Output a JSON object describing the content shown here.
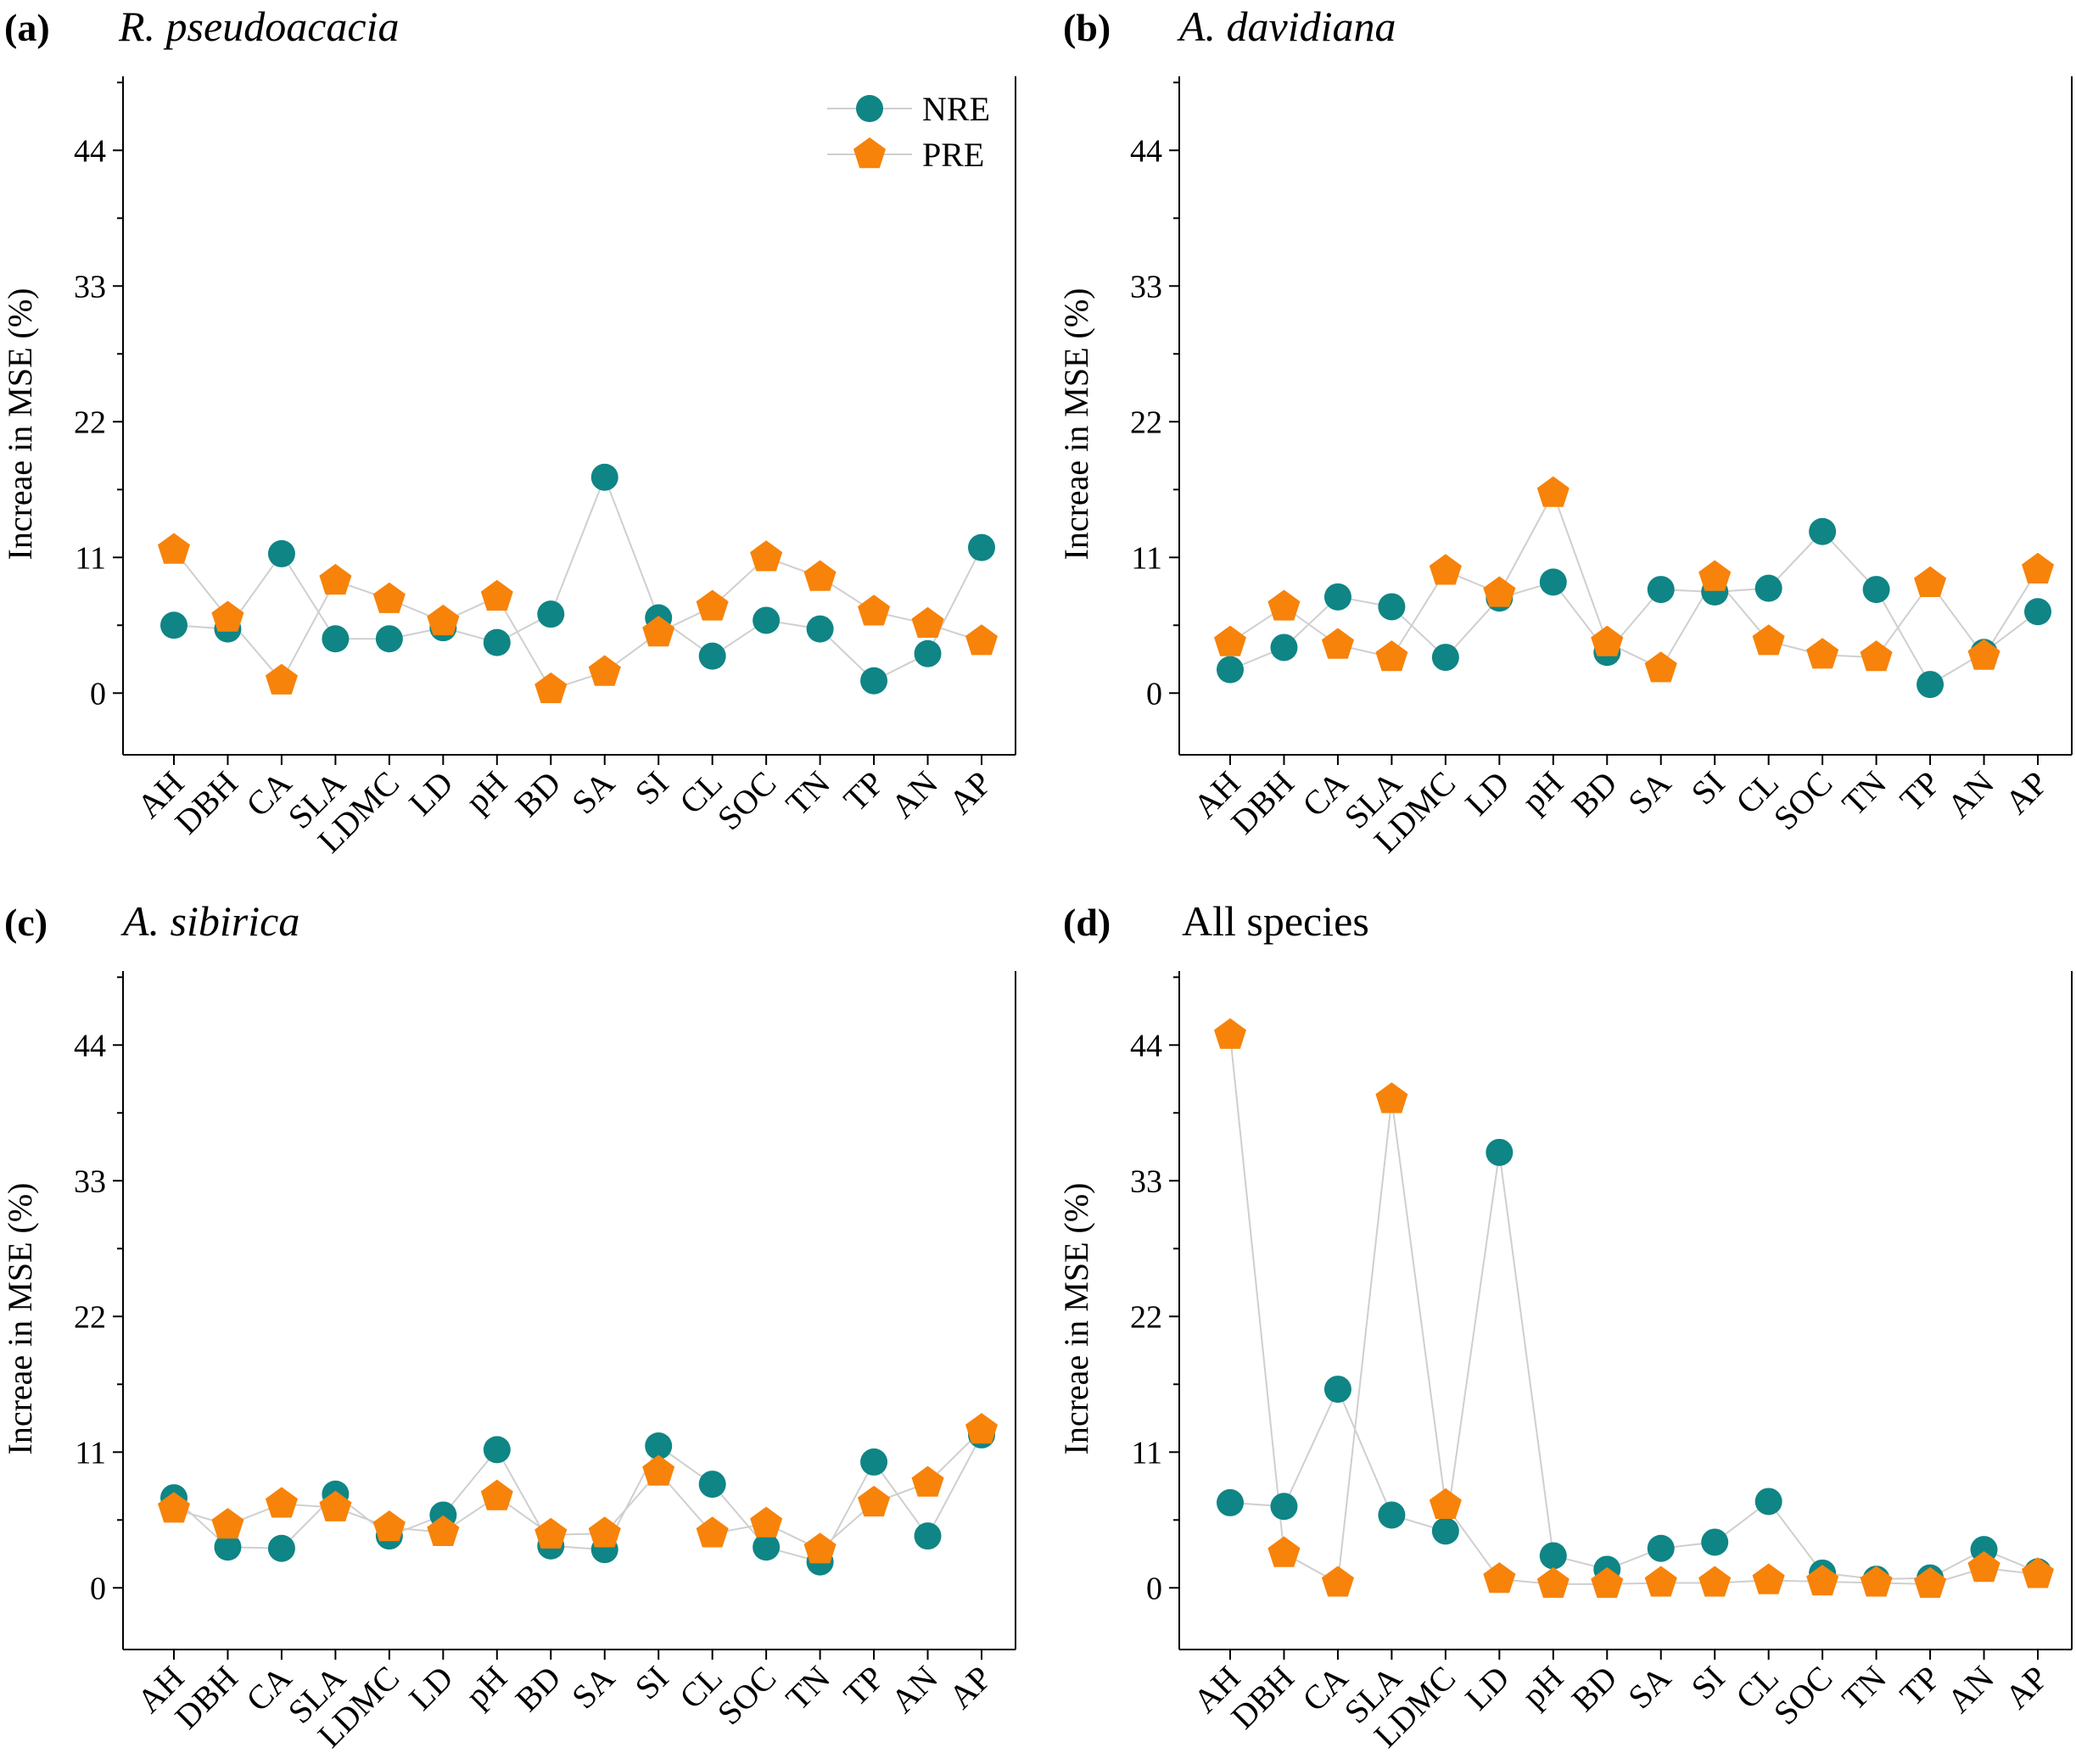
{
  "legend": {
    "nre_label": "NRE",
    "pre_label": "PRE"
  },
  "colors": {
    "nre": "#0F8585",
    "pre": "#F7830A",
    "connector": "#CFCFCF",
    "axis": "#000000"
  },
  "chart_data": [
    {
      "type": "scatter",
      "panel": "(a)",
      "title": "R. pseudoacacia",
      "title_italic": true,
      "ylabel": "Increae in MSE (%)",
      "ylim": [
        -5,
        50
      ],
      "yticks": [
        0,
        11,
        22,
        33,
        44
      ],
      "categories": [
        "AH",
        "DBH",
        "CA",
        "SLA",
        "LDMC",
        "LD",
        "pH",
        "BD",
        "SA",
        "SI",
        "CL",
        "SOC",
        "TN",
        "TP",
        "AN",
        "AP"
      ],
      "series": [
        {
          "name": "NRE",
          "values": [
            5.5,
            5.2,
            11.3,
            4.4,
            4.4,
            5.3,
            4.1,
            6.4,
            17.5,
            6.1,
            3.0,
            5.9,
            5.2,
            1.0,
            3.2,
            11.8
          ]
        },
        {
          "name": "PRE",
          "values": [
            11.6,
            6.1,
            1.0,
            9.1,
            7.6,
            5.8,
            7.8,
            0.3,
            1.7,
            4.9,
            7.0,
            11.0,
            9.4,
            6.6,
            5.6,
            4.2
          ]
        }
      ]
    },
    {
      "type": "scatter",
      "panel": "(b)",
      "title": "A. davidiana",
      "title_italic": true,
      "ylabel": "Increae in MSE (%)",
      "ylim": [
        -5,
        50
      ],
      "yticks": [
        0,
        11,
        22,
        33,
        44
      ],
      "categories": [
        "AH",
        "DBH",
        "CA",
        "SLA",
        "LDMC",
        "LD",
        "pH",
        "BD",
        "SA",
        "SI",
        "CL",
        "SOC",
        "TN",
        "TP",
        "AN",
        "AP"
      ],
      "series": [
        {
          "name": "NRE",
          "values": [
            1.9,
            3.7,
            7.8,
            7.0,
            2.9,
            7.7,
            9.0,
            3.3,
            8.4,
            8.2,
            8.5,
            13.1,
            8.4,
            0.7,
            3.3,
            6.6
          ]
        },
        {
          "name": "PRE",
          "values": [
            4.1,
            7.0,
            3.9,
            2.9,
            9.9,
            8.1,
            16.2,
            4.1,
            2.0,
            9.4,
            4.2,
            3.1,
            2.9,
            8.9,
            3.0,
            10.0
          ]
        }
      ]
    },
    {
      "type": "scatter",
      "panel": "(c)",
      "title": "A. sibirica",
      "title_italic": true,
      "ylabel": "Increae in MSE (%)",
      "ylim": [
        -5,
        50
      ],
      "yticks": [
        0,
        11,
        22,
        33,
        44
      ],
      "categories": [
        "AH",
        "DBH",
        "CA",
        "SLA",
        "LDMC",
        "LD",
        "pH",
        "BD",
        "SA",
        "SI",
        "CL",
        "SOC",
        "TN",
        "TP",
        "AN",
        "AP"
      ],
      "series": [
        {
          "name": "NRE",
          "values": [
            7.3,
            3.3,
            3.2,
            7.6,
            4.2,
            5.9,
            11.2,
            3.4,
            3.1,
            11.5,
            8.4,
            3.3,
            2.1,
            10.2,
            4.2,
            12.4
          ]
        },
        {
          "name": "PRE",
          "values": [
            6.4,
            5.1,
            6.8,
            6.5,
            4.9,
            4.5,
            7.4,
            4.3,
            4.4,
            9.4,
            4.4,
            5.2,
            3.1,
            6.9,
            8.5,
            12.8
          ]
        }
      ]
    },
    {
      "type": "scatter",
      "panel": "(d)",
      "title": "All species",
      "title_italic": false,
      "ylabel": "Increae in MSE (%)",
      "ylim": [
        -5,
        50
      ],
      "yticks": [
        0,
        11,
        22,
        33,
        44
      ],
      "categories": [
        "AH",
        "DBH",
        "CA",
        "SLA",
        "LDMC",
        "LD",
        "pH",
        "BD",
        "SA",
        "SI",
        "CL",
        "SOC",
        "TN",
        "TP",
        "AN",
        "AP"
      ],
      "series": [
        {
          "name": "NRE",
          "values": [
            6.9,
            6.6,
            16.1,
            5.9,
            4.6,
            35.3,
            2.6,
            1.5,
            3.2,
            3.7,
            7.0,
            1.2,
            0.7,
            0.8,
            3.1,
            1.3
          ]
        },
        {
          "name": "PRE",
          "values": [
            44.8,
            2.8,
            0.4,
            39.6,
            6.7,
            0.7,
            0.3,
            0.3,
            0.4,
            0.4,
            0.6,
            0.5,
            0.4,
            0.3,
            1.6,
            1.1
          ]
        }
      ]
    }
  ]
}
